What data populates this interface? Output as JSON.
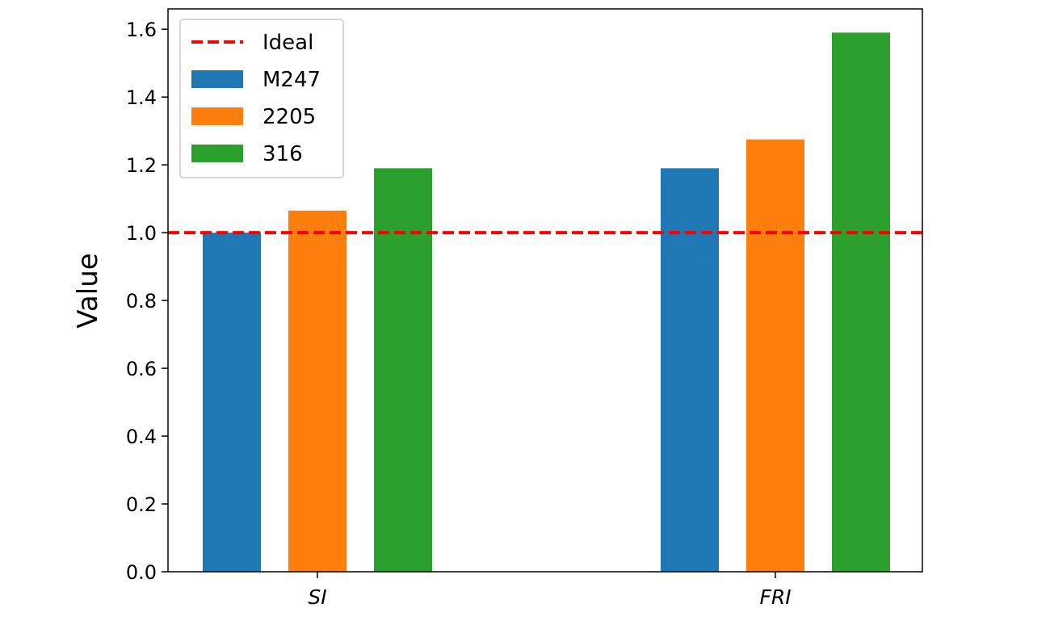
{
  "chart_data": {
    "type": "bar",
    "title": "",
    "xlabel": "",
    "ylabel": "Value",
    "categories": [
      "SI",
      "FRI"
    ],
    "series": [
      {
        "name": "M247",
        "color": "#1f77b4",
        "values": [
          1.0,
          1.19
        ]
      },
      {
        "name": "2205",
        "color": "#ff7f0e",
        "values": [
          1.065,
          1.275
        ]
      },
      {
        "name": "316",
        "color": "#2ca02c",
        "values": [
          1.19,
          1.59
        ]
      }
    ],
    "reference_line": {
      "name": "Ideal",
      "y": 1.0,
      "color": "#ff0000",
      "style": "dashed"
    },
    "ylim": [
      0,
      1.66
    ],
    "yticks": [
      "0.0",
      "0.2",
      "0.4",
      "0.6",
      "0.8",
      "1.0",
      "1.2",
      "1.4",
      "1.6"
    ],
    "grid": false,
    "legend_position": "top-left"
  }
}
